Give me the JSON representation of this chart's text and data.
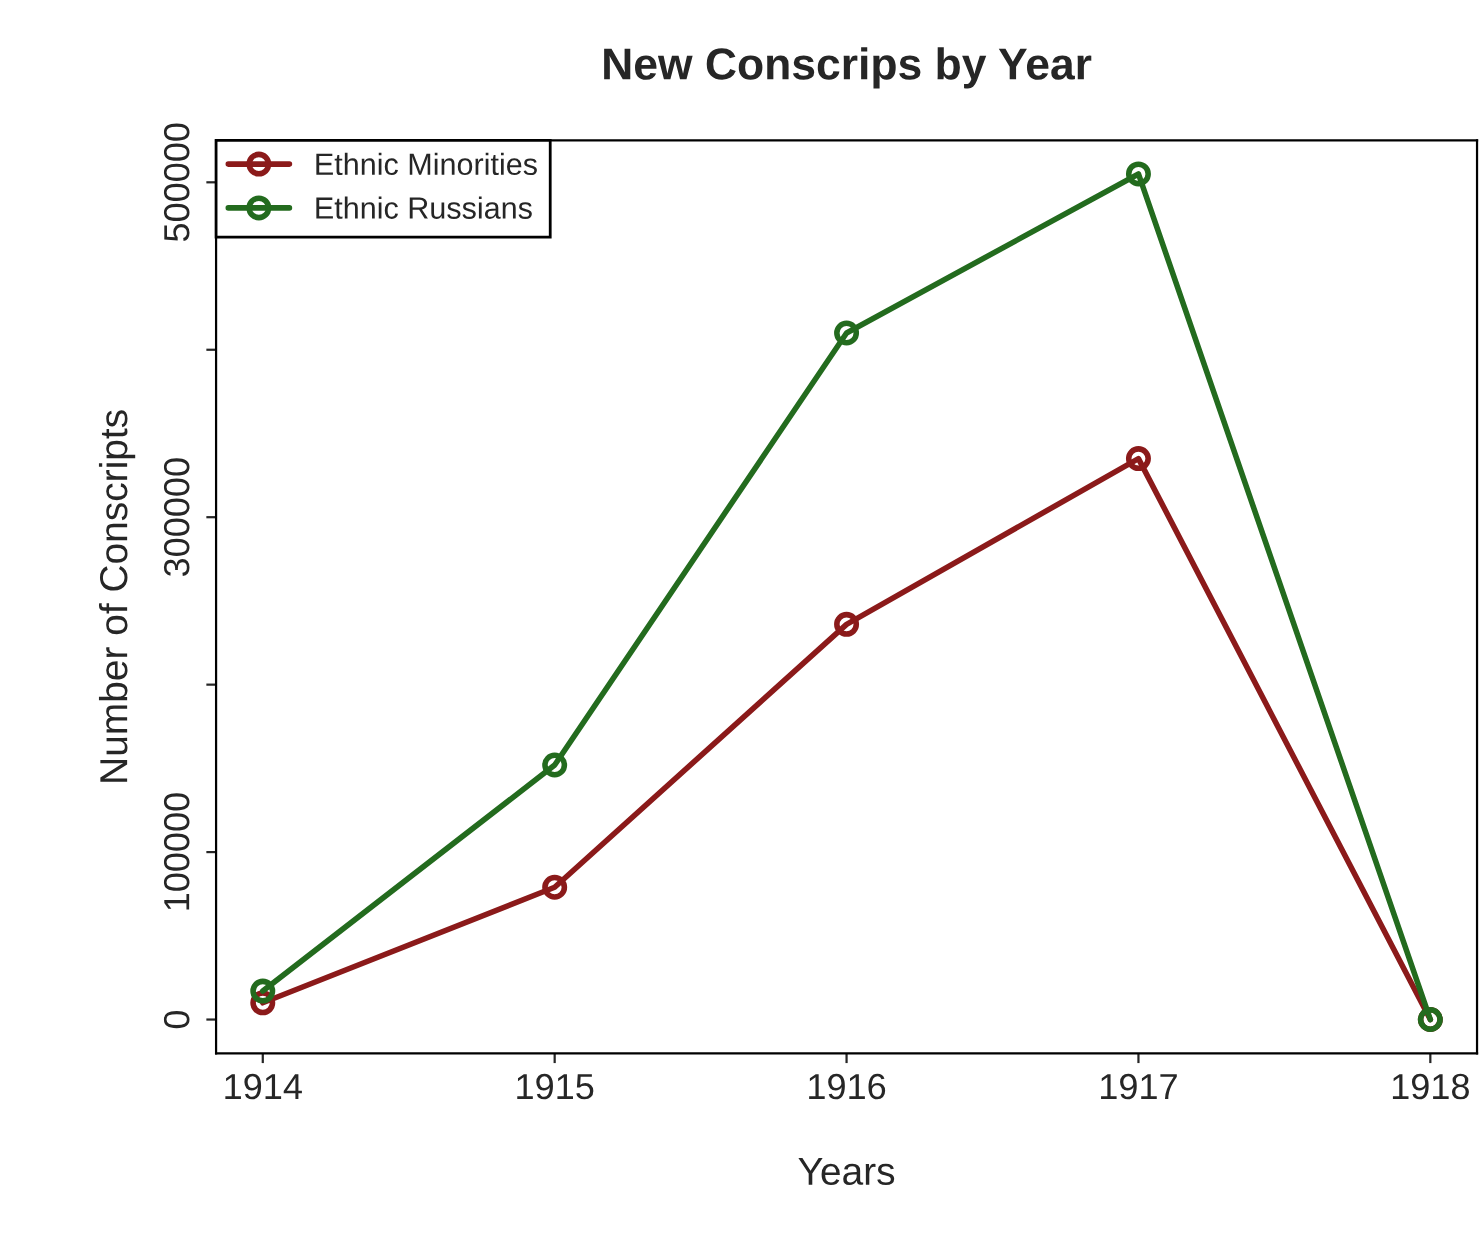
{
  "chart_data": {
    "type": "line",
    "title": "New Conscrips by Year",
    "xlabel": "Years",
    "ylabel": "Number of Conscripts",
    "x": [
      1914,
      1915,
      1916,
      1917,
      1918
    ],
    "series": [
      {
        "name": "Ethnic Minorities",
        "color": "#8b1a1a",
        "values": [
          10000,
          79000,
          236000,
          335000,
          0
        ]
      },
      {
        "name": "Ethnic Russians",
        "color": "#236b1e",
        "values": [
          17000,
          152000,
          410000,
          505000,
          0
        ]
      }
    ],
    "xlim": [
      1913.84,
      1918.16
    ],
    "ylim": [
      -20200,
      525000
    ],
    "xticks": [
      1914,
      1915,
      1916,
      1917,
      1918
    ],
    "yticks": [
      0,
      100000,
      {
        "value": 200000,
        "label": null
      },
      300000,
      {
        "value": 400000,
        "label": null
      },
      500000
    ],
    "grid": false,
    "legend": "top left",
    "marker": "circle",
    "line_style": "solid"
  }
}
